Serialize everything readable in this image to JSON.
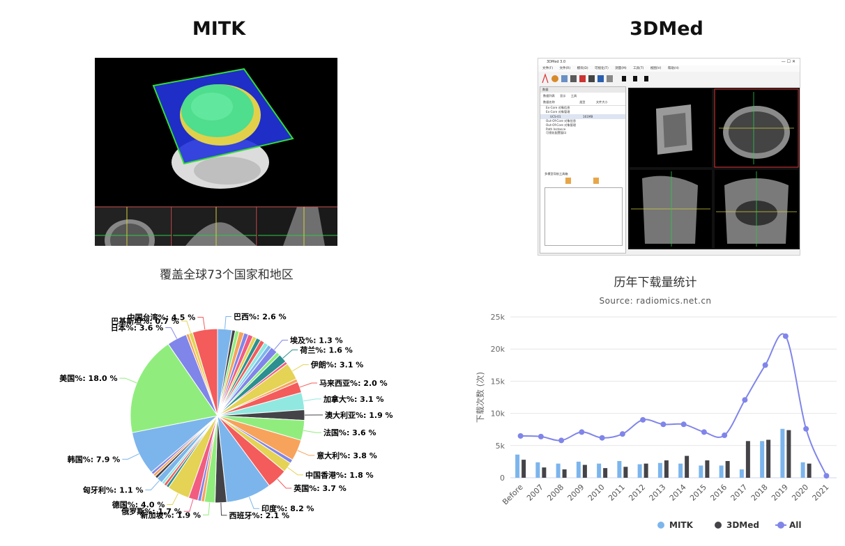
{
  "left_title": "MITK",
  "right_title": "3DMed",
  "mitk_screenshot": {
    "icon": "mitk-3d-skull-render-screenshot"
  },
  "med_screenshot": {
    "icon": "3dmed-ct-viewer-screenshot",
    "window_title": "3DMed 3.0",
    "menu": [
      "文件(F)",
      "文件(R)",
      "模块(D)",
      "可视化(T)",
      "测量(M)",
      "工具(T)",
      "视图(V)",
      "帮助(H)"
    ],
    "panel_title": "数据",
    "tabs": [
      "数据列表",
      "显示",
      "工具"
    ],
    "columns": [
      "数据名称",
      "类型",
      "文件大小"
    ],
    "tree": [
      "Ex-Core 对象信息",
      "Ex-Core 对象管理",
      "UCS-01",
      "Out-Of-Core 对象信息",
      "Out-Of-Core 对象管理",
      "Path Instance",
      "可视化配置窗口"
    ],
    "file_size": "161MB",
    "cases_label": "多模型导航工具箱"
  },
  "chart_data": [
    {
      "type": "pie",
      "title": "覆盖全球73个国家和地区",
      "label_format": "{name}%: {value} %",
      "slices": [
        {
          "name": "巴西",
          "value": 2.6,
          "color": "#7cb5ec",
          "labeled": true
        },
        {
          "name": "",
          "value": 0.6,
          "color": "#434348",
          "labeled": false
        },
        {
          "name": "",
          "value": 0.7,
          "color": "#90ed7d",
          "labeled": false
        },
        {
          "name": "",
          "value": 0.9,
          "color": "#f7a35c",
          "labeled": false
        },
        {
          "name": "",
          "value": 0.8,
          "color": "#8085e9",
          "labeled": false
        },
        {
          "name": "",
          "value": 0.9,
          "color": "#f15c80",
          "labeled": false
        },
        {
          "name": "",
          "value": 0.7,
          "color": "#e4d354",
          "labeled": false
        },
        {
          "name": "",
          "value": 0.8,
          "color": "#2b908f",
          "labeled": false
        },
        {
          "name": "",
          "value": 0.8,
          "color": "#f45b5b",
          "labeled": false
        },
        {
          "name": "",
          "value": 0.8,
          "color": "#91e8e1",
          "labeled": false
        },
        {
          "name": "",
          "value": 0.7,
          "color": "#7cb5ec",
          "labeled": false
        },
        {
          "name": "埃及",
          "value": 1.3,
          "color": "#8085e9",
          "labeled": true
        },
        {
          "name": "",
          "value": 0.7,
          "color": "#90ed7d",
          "labeled": false
        },
        {
          "name": "荷兰",
          "value": 1.6,
          "color": "#2b908f",
          "labeled": true
        },
        {
          "name": "",
          "value": 0.5,
          "color": "#f15c80",
          "labeled": false
        },
        {
          "name": "伊朗",
          "value": 3.1,
          "color": "#e4d354",
          "labeled": true
        },
        {
          "name": "",
          "value": 0.6,
          "color": "#f7a35c",
          "labeled": false
        },
        {
          "name": "马来西亚",
          "value": 2.0,
          "color": "#f45b5b",
          "labeled": true
        },
        {
          "name": "加拿大",
          "value": 3.1,
          "color": "#91e8e1",
          "labeled": true
        },
        {
          "name": "澳大利亚",
          "value": 1.9,
          "color": "#434348",
          "labeled": true
        },
        {
          "name": "法国",
          "value": 3.6,
          "color": "#90ed7d",
          "labeled": true
        },
        {
          "name": "意大利",
          "value": 3.8,
          "color": "#f7a35c",
          "labeled": true
        },
        {
          "name": "",
          "value": 0.7,
          "color": "#8085e9",
          "labeled": false
        },
        {
          "name": "中国香港",
          "value": 1.8,
          "color": "#e4d354",
          "labeled": true
        },
        {
          "name": "英国",
          "value": 3.7,
          "color": "#f45b5b",
          "labeled": true
        },
        {
          "name": "印度",
          "value": 8.2,
          "color": "#7cb5ec",
          "labeled": true
        },
        {
          "name": "西班牙",
          "value": 2.1,
          "color": "#434348",
          "labeled": true
        },
        {
          "name": "新加坡",
          "value": 1.9,
          "color": "#90ed7d",
          "labeled": true
        },
        {
          "name": "",
          "value": 0.6,
          "color": "#f7a35c",
          "labeled": false
        },
        {
          "name": "",
          "value": 0.6,
          "color": "#8085e9",
          "labeled": false
        },
        {
          "name": "俄罗斯",
          "value": 1.7,
          "color": "#f15c80",
          "labeled": true
        },
        {
          "name": "德国",
          "value": 4.0,
          "color": "#e4d354",
          "labeled": true
        },
        {
          "name": "",
          "value": 0.5,
          "color": "#2b908f",
          "labeled": false
        },
        {
          "name": "",
          "value": 0.5,
          "color": "#f45b5b",
          "labeled": false
        },
        {
          "name": "",
          "value": 0.5,
          "color": "#91e8e1",
          "labeled": false
        },
        {
          "name": "匈牙利",
          "value": 1.1,
          "color": "#7cb5ec",
          "labeled": true
        },
        {
          "name": "",
          "value": 0.5,
          "color": "#434348",
          "labeled": false
        },
        {
          "name": "",
          "value": 0.5,
          "color": "#f7a35c",
          "labeled": false
        },
        {
          "name": "",
          "value": 0.5,
          "color": "#8085e9",
          "labeled": false
        },
        {
          "name": "韩国",
          "value": 7.9,
          "color": "#7cb5ec",
          "labeled": true
        },
        {
          "name": "美国",
          "value": 18.0,
          "color": "#90ed7d",
          "labeled": true
        },
        {
          "name": "日本",
          "value": 3.6,
          "color": "#8085e9",
          "labeled": true
        },
        {
          "name": "",
          "value": 0.5,
          "color": "#f7a35c",
          "labeled": false
        },
        {
          "name": "巴基斯坦",
          "value": 0.7,
          "color": "#e4d354",
          "labeled": true
        },
        {
          "name": "中国台湾",
          "value": 4.5,
          "color": "#f45b5b",
          "labeled": true
        }
      ]
    },
    {
      "type": "bar",
      "title": "历年下载量统计",
      "subtitle": "Source: radiomics.net.cn",
      "categories": [
        "Before",
        "2007",
        "2008",
        "2009",
        "2010",
        "2011",
        "2012",
        "2013",
        "2014",
        "2015",
        "2016",
        "2017",
        "2018",
        "2019",
        "2020",
        "2021"
      ],
      "ylabel": "下载次数 (次)",
      "ylim": [
        0,
        25000
      ],
      "yticks": [
        0,
        5000,
        10000,
        15000,
        20000,
        25000
      ],
      "ytick_labels": [
        "0",
        "5k",
        "10k",
        "15k",
        "20k",
        "25k"
      ],
      "grid": true,
      "legend_position": "bottom",
      "series": [
        {
          "name": "MITK",
          "type": "column",
          "color": "#7cb5ec",
          "values": [
            3600,
            2400,
            2200,
            2500,
            2200,
            2600,
            2100,
            2300,
            2200,
            1900,
            1900,
            1300,
            5700,
            7600,
            2400,
            0
          ]
        },
        {
          "name": "3DMed",
          "type": "column",
          "color": "#434348",
          "values": [
            2800,
            1600,
            1300,
            2000,
            1500,
            1700,
            2200,
            2700,
            3400,
            2700,
            2600,
            5700,
            5900,
            7400,
            2200,
            0
          ]
        },
        {
          "name": "All",
          "type": "spline",
          "color": "#8085e9",
          "values": [
            6500,
            6400,
            5800,
            7100,
            6200,
            6800,
            9000,
            8300,
            8300,
            7100,
            6600,
            12100,
            17500,
            22000,
            7600,
            300
          ]
        }
      ]
    }
  ]
}
